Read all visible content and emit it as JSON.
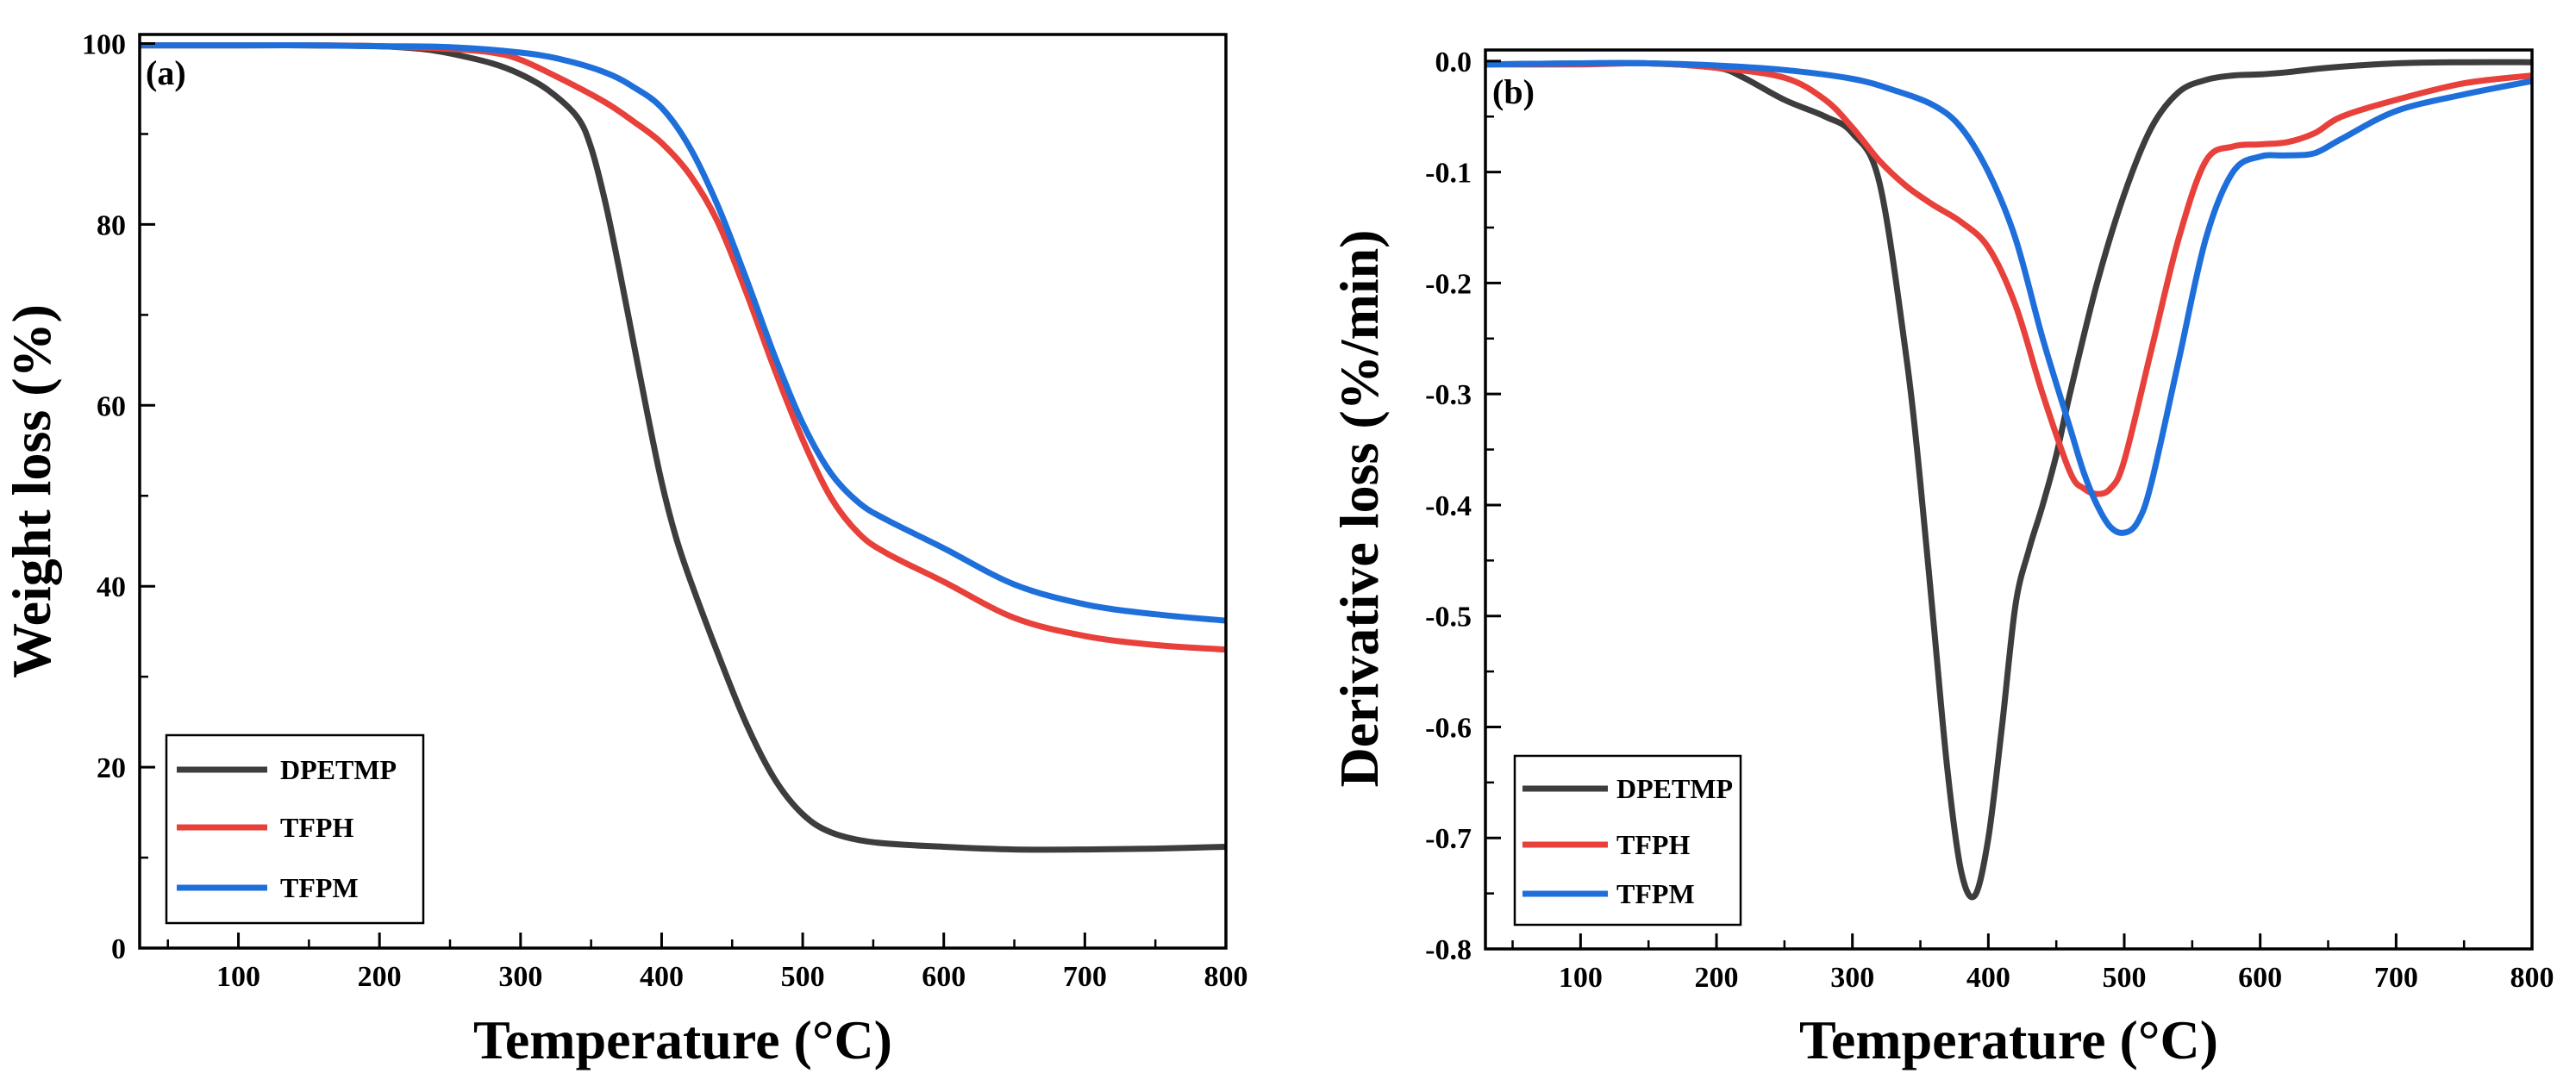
{
  "chart_data": [
    {
      "type": "line",
      "panel_label": "(a)",
      "xlabel": "Temperature (°C)",
      "ylabel": "Weight loss (%)",
      "xlim": [
        30,
        800
      ],
      "ylim": [
        0,
        101
      ],
      "x_ticks": [
        100,
        200,
        300,
        400,
        500,
        600,
        700,
        800
      ],
      "y_ticks": [
        0,
        20,
        40,
        60,
        80,
        100
      ],
      "y_tick_labels": [
        "0",
        "20",
        "40",
        "60",
        "80",
        "100"
      ],
      "legend_position": "bottom-left",
      "series": [
        {
          "name": "DPETMP",
          "color": "#3d3d3d",
          "x": [
            30,
            100,
            150,
            200,
            230,
            250,
            280,
            300,
            320,
            340,
            350,
            360,
            370,
            380,
            390,
            400,
            410,
            420,
            440,
            460,
            480,
            500,
            520,
            550,
            600,
            650,
            700,
            750,
            800
          ],
          "y": [
            99.8,
            99.8,
            99.8,
            99.7,
            99.4,
            98.9,
            97.8,
            96.6,
            94.8,
            91.9,
            88.5,
            82.5,
            75.0,
            67.0,
            59.0,
            51.5,
            45.5,
            40.8,
            32.5,
            24.8,
            18.7,
            14.8,
            12.8,
            11.7,
            11.2,
            10.9,
            10.9,
            11.0,
            11.2
          ]
        },
        {
          "name": "TFPH",
          "color": "#e8403a",
          "x": [
            30,
            100,
            150,
            200,
            250,
            280,
            300,
            330,
            360,
            380,
            400,
            420,
            440,
            460,
            480,
            500,
            520,
            540,
            560,
            600,
            650,
            700,
            750,
            800
          ],
          "y": [
            99.8,
            99.8,
            99.8,
            99.7,
            99.4,
            99.0,
            98.2,
            96.0,
            93.5,
            91.4,
            89.0,
            85.5,
            80.2,
            72.5,
            64.0,
            56.2,
            49.8,
            45.8,
            43.6,
            40.5,
            36.5,
            34.5,
            33.5,
            33.0
          ]
        },
        {
          "name": "TFPM",
          "color": "#1f6fdb",
          "x": [
            30,
            100,
            150,
            200,
            250,
            300,
            330,
            360,
            380,
            400,
            420,
            440,
            460,
            480,
            500,
            520,
            540,
            560,
            600,
            650,
            700,
            750,
            800
          ],
          "y": [
            99.8,
            99.8,
            99.8,
            99.7,
            99.6,
            99.0,
            98.2,
            96.8,
            95.2,
            92.9,
            88.5,
            82.0,
            74.0,
            65.5,
            58.0,
            52.5,
            49.2,
            47.3,
            44.2,
            40.2,
            38.0,
            36.9,
            36.2
          ]
        }
      ]
    },
    {
      "type": "line",
      "panel_label": "(b)",
      "xlabel": "Temperature (°C)",
      "ylabel": "Derivative loss (%/min)",
      "xlim": [
        30,
        800
      ],
      "ylim": [
        -0.8,
        0.01
      ],
      "x_ticks": [
        100,
        200,
        300,
        400,
        500,
        600,
        700,
        800
      ],
      "y_ticks": [
        0,
        -0.1,
        -0.2,
        -0.3,
        -0.4,
        -0.5,
        -0.6,
        -0.7,
        -0.8
      ],
      "y_tick_labels": [
        "0.0",
        "-0.1",
        "-0.2",
        "-0.3",
        "-0.4",
        "-0.5",
        "-0.6",
        "-0.7",
        "-0.8"
      ],
      "legend_position": "bottom-left",
      "series": [
        {
          "name": "DPETMP",
          "color": "#3d3d3d",
          "x": [
            30,
            100,
            150,
            200,
            220,
            250,
            280,
            300,
            320,
            340,
            350,
            360,
            370,
            380,
            390,
            400,
            410,
            420,
            430,
            440,
            450,
            460,
            480,
            500,
            520,
            540,
            560,
            580,
            600,
            620,
            650,
            700,
            750,
            800
          ],
          "y": [
            -0.003,
            -0.002,
            -0.002,
            -0.006,
            -0.015,
            -0.035,
            -0.05,
            -0.065,
            -0.11,
            -0.27,
            -0.38,
            -0.51,
            -0.64,
            -0.73,
            -0.752,
            -0.7,
            -0.6,
            -0.49,
            -0.44,
            -0.4,
            -0.355,
            -0.3,
            -0.2,
            -0.12,
            -0.06,
            -0.028,
            -0.017,
            -0.013,
            -0.012,
            -0.01,
            -0.006,
            -0.002,
            -0.001,
            -0.001
          ]
        },
        {
          "name": "TFPH",
          "color": "#e8403a",
          "x": [
            30,
            100,
            150,
            200,
            250,
            280,
            300,
            320,
            340,
            360,
            380,
            400,
            420,
            440,
            460,
            470,
            480,
            490,
            500,
            520,
            540,
            560,
            580,
            600,
            620,
            640,
            660,
            700,
            750,
            800
          ],
          "y": [
            -0.003,
            -0.003,
            -0.002,
            -0.006,
            -0.015,
            -0.035,
            -0.06,
            -0.09,
            -0.113,
            -0.13,
            -0.145,
            -0.168,
            -0.22,
            -0.3,
            -0.37,
            -0.385,
            -0.39,
            -0.385,
            -0.36,
            -0.26,
            -0.16,
            -0.09,
            -0.077,
            -0.075,
            -0.073,
            -0.065,
            -0.05,
            -0.035,
            -0.02,
            -0.013
          ]
        },
        {
          "name": "TFPM",
          "color": "#1f6fdb",
          "x": [
            30,
            100,
            150,
            200,
            250,
            300,
            330,
            360,
            380,
            400,
            420,
            440,
            460,
            470,
            480,
            490,
            500,
            510,
            520,
            540,
            560,
            580,
            600,
            620,
            640,
            660,
            700,
            750,
            800
          ],
          "y": [
            -0.003,
            -0.002,
            -0.002,
            -0.004,
            -0.008,
            -0.016,
            -0.026,
            -0.04,
            -0.06,
            -0.1,
            -0.16,
            -0.25,
            -0.33,
            -0.37,
            -0.4,
            -0.42,
            -0.425,
            -0.415,
            -0.38,
            -0.27,
            -0.16,
            -0.1,
            -0.086,
            -0.085,
            -0.083,
            -0.07,
            -0.045,
            -0.03,
            -0.018
          ]
        }
      ]
    }
  ]
}
